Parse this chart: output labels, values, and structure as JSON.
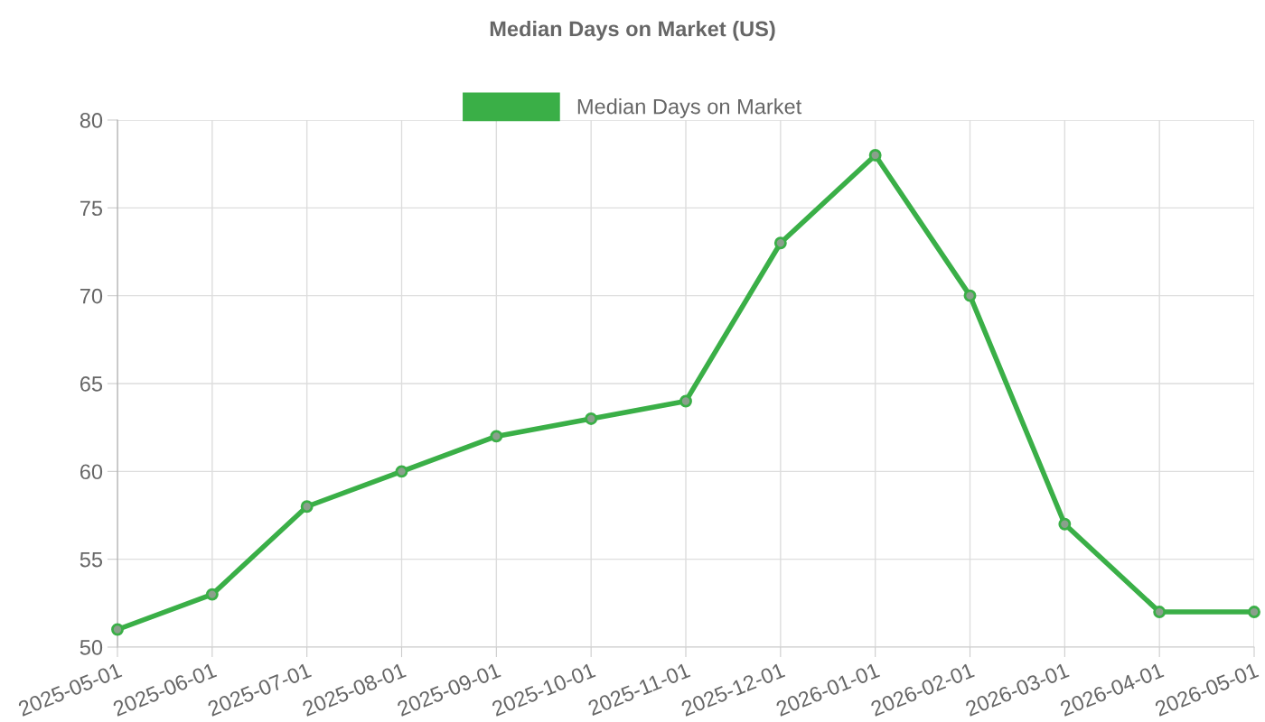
{
  "chart_data": {
    "type": "line",
    "title": "Median Days on Market (US)",
    "categories": [
      "2025-05-01",
      "2025-06-01",
      "2025-07-01",
      "2025-08-01",
      "2025-09-01",
      "2025-10-01",
      "2025-11-01",
      "2025-12-01",
      "2026-01-01",
      "2026-02-01",
      "2026-03-01",
      "2026-04-01",
      "2026-05-01"
    ],
    "series": [
      {
        "name": "Median Days on Market",
        "color": "#3aaf47",
        "values": [
          51,
          53,
          58,
          60,
          62,
          63,
          64,
          73,
          78,
          70,
          57,
          52,
          52
        ]
      }
    ],
    "ylim": [
      50,
      80
    ],
    "yticks": [
      50,
      55,
      60,
      65,
      70,
      75,
      80
    ],
    "grid": true,
    "legend": "top",
    "marker": "circle",
    "line_style": "solid"
  }
}
